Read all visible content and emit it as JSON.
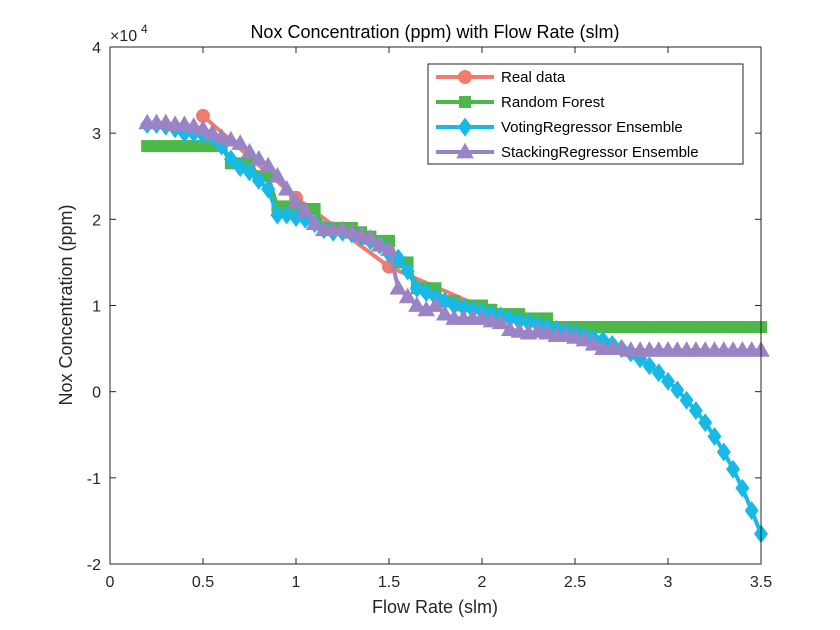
{
  "chart_data": {
    "type": "line",
    "title": "Nox Concentration (ppm) with Flow Rate (slm)",
    "xlabel": "Flow Rate (slm)",
    "ylabel": "Nox Concentration (ppm)",
    "y_exponent_label": "×10",
    "y_exponent_power": "4",
    "xlim": [
      0,
      3.5
    ],
    "ylim": [
      -2,
      4
    ],
    "x_ticks": [
      0,
      0.5,
      1,
      1.5,
      2,
      2.5,
      3,
      3.5
    ],
    "x_tick_labels": [
      "0",
      "0.5",
      "1",
      "1.5",
      "2",
      "2.5",
      "3",
      "3.5"
    ],
    "y_ticks": [
      -2,
      -1,
      0,
      1,
      2,
      3,
      4
    ],
    "y_tick_labels": [
      "-2",
      "-1",
      "0",
      "1",
      "2",
      "3",
      "4"
    ],
    "grid": false,
    "legend_position": "top-right",
    "series": [
      {
        "name": "Real data",
        "color": "#F07C70",
        "marker": "circle",
        "x": [
          0.5,
          1.0,
          1.5,
          2.0
        ],
        "y": [
          3.2,
          2.25,
          1.45,
          0.98
        ]
      },
      {
        "name": "Random Forest",
        "color": "#4DB74A",
        "marker": "square",
        "x": [
          0.2,
          0.25,
          0.3,
          0.35,
          0.4,
          0.45,
          0.5,
          0.55,
          0.6,
          0.65,
          0.7,
          0.75,
          0.8,
          0.85,
          0.9,
          0.95,
          1.0,
          1.05,
          1.1,
          1.15,
          1.2,
          1.25,
          1.3,
          1.35,
          1.4,
          1.45,
          1.5,
          1.55,
          1.6,
          1.65,
          1.7,
          1.75,
          1.8,
          1.85,
          1.9,
          1.95,
          2.0,
          2.05,
          2.1,
          2.15,
          2.2,
          2.25,
          2.3,
          2.35,
          2.4,
          2.45,
          2.5,
          2.55,
          2.6,
          2.65,
          2.7,
          2.75,
          2.8,
          2.85,
          2.9,
          2.95,
          3.0,
          3.05,
          3.1,
          3.15,
          3.2,
          3.25,
          3.3,
          3.35,
          3.4,
          3.45,
          3.5
        ],
        "y": [
          2.85,
          2.85,
          2.85,
          2.85,
          2.85,
          2.85,
          2.85,
          2.85,
          2.85,
          2.65,
          2.65,
          2.65,
          2.5,
          2.5,
          2.15,
          2.15,
          2.15,
          2.12,
          2.12,
          1.9,
          1.9,
          1.9,
          1.9,
          1.85,
          1.8,
          1.75,
          1.75,
          1.5,
          1.5,
          1.2,
          1.2,
          1.2,
          1.05,
          1.05,
          1.0,
          1.0,
          1.0,
          0.95,
          0.9,
          0.9,
          0.9,
          0.85,
          0.85,
          0.85,
          0.75,
          0.75,
          0.75,
          0.75,
          0.75,
          0.75,
          0.75,
          0.75,
          0.75,
          0.75,
          0.75,
          0.75,
          0.75,
          0.75,
          0.75,
          0.75,
          0.75,
          0.75,
          0.75,
          0.75,
          0.75,
          0.75,
          0.75
        ]
      },
      {
        "name": "VotingRegressor Ensemble",
        "color": "#19B9E6",
        "marker": "diamond",
        "x": [
          0.2,
          0.25,
          0.3,
          0.35,
          0.4,
          0.45,
          0.5,
          0.55,
          0.6,
          0.65,
          0.7,
          0.75,
          0.8,
          0.85,
          0.9,
          0.95,
          1.0,
          1.05,
          1.1,
          1.15,
          1.2,
          1.25,
          1.3,
          1.35,
          1.4,
          1.45,
          1.5,
          1.55,
          1.6,
          1.65,
          1.7,
          1.75,
          1.8,
          1.85,
          1.9,
          1.95,
          2.0,
          2.05,
          2.1,
          2.15,
          2.2,
          2.25,
          2.3,
          2.35,
          2.4,
          2.45,
          2.5,
          2.55,
          2.6,
          2.65,
          2.7,
          2.75,
          2.8,
          2.85,
          2.9,
          2.95,
          3.0,
          3.05,
          3.1,
          3.15,
          3.2,
          3.25,
          3.3,
          3.35,
          3.4,
          3.45,
          3.5
        ],
        "y": [
          3.1,
          3.1,
          3.08,
          3.05,
          3.0,
          3.0,
          2.98,
          2.95,
          2.85,
          2.7,
          2.6,
          2.55,
          2.45,
          2.35,
          2.05,
          2.05,
          2.02,
          2.0,
          1.95,
          1.88,
          1.85,
          1.85,
          1.83,
          1.8,
          1.75,
          1.7,
          1.6,
          1.55,
          1.4,
          1.2,
          1.15,
          1.1,
          1.05,
          1.0,
          0.98,
          0.95,
          0.93,
          0.9,
          0.88,
          0.85,
          0.82,
          0.8,
          0.78,
          0.75,
          0.72,
          0.7,
          0.68,
          0.65,
          0.62,
          0.6,
          0.55,
          0.5,
          0.45,
          0.38,
          0.3,
          0.22,
          0.12,
          0.02,
          -0.1,
          -0.22,
          -0.36,
          -0.52,
          -0.7,
          -0.9,
          -1.12,
          -1.38,
          -1.65
        ]
      },
      {
        "name": "StackingRegressor Ensemble",
        "color": "#9B84C6",
        "marker": "triangle",
        "x": [
          0.2,
          0.25,
          0.3,
          0.35,
          0.4,
          0.45,
          0.5,
          0.55,
          0.6,
          0.65,
          0.7,
          0.75,
          0.8,
          0.85,
          0.9,
          0.95,
          1.0,
          1.05,
          1.1,
          1.15,
          1.2,
          1.25,
          1.3,
          1.35,
          1.4,
          1.45,
          1.5,
          1.55,
          1.6,
          1.65,
          1.7,
          1.75,
          1.8,
          1.85,
          1.9,
          1.95,
          2.0,
          2.05,
          2.1,
          2.15,
          2.2,
          2.25,
          2.3,
          2.35,
          2.4,
          2.45,
          2.5,
          2.55,
          2.6,
          2.65,
          2.7,
          2.75,
          2.8,
          2.85,
          2.9,
          2.95,
          3.0,
          3.05,
          3.1,
          3.15,
          3.2,
          3.25,
          3.3,
          3.35,
          3.4,
          3.45,
          3.5
        ],
        "y": [
          3.12,
          3.12,
          3.12,
          3.1,
          3.1,
          3.08,
          3.05,
          3.0,
          2.95,
          2.92,
          2.88,
          2.78,
          2.7,
          2.62,
          2.5,
          2.35,
          2.2,
          2.1,
          1.95,
          1.88,
          1.88,
          1.88,
          1.85,
          1.82,
          1.78,
          1.7,
          1.65,
          1.2,
          1.1,
          1.0,
          0.95,
          1.0,
          0.9,
          0.85,
          0.85,
          0.85,
          0.85,
          0.82,
          0.8,
          0.72,
          0.7,
          0.68,
          0.7,
          0.68,
          0.65,
          0.65,
          0.63,
          0.6,
          0.55,
          0.5,
          0.5,
          0.5,
          0.48,
          0.48,
          0.48,
          0.48,
          0.48,
          0.48,
          0.48,
          0.48,
          0.48,
          0.48,
          0.48,
          0.48,
          0.48,
          0.48,
          0.48
        ]
      }
    ]
  }
}
